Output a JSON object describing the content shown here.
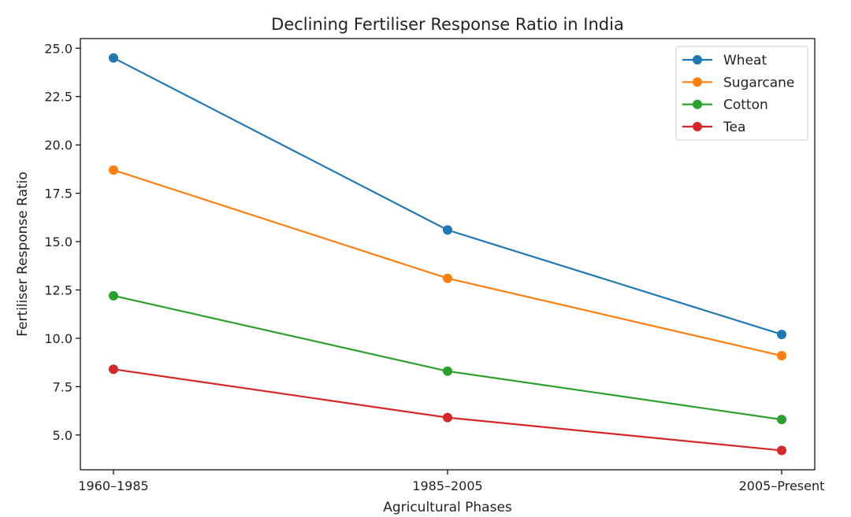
{
  "chart_data": {
    "type": "line",
    "title": "Declining Fertiliser Response Ratio in India",
    "xlabel": "Agricultural Phases",
    "ylabel": "Fertiliser Response Ratio",
    "categories": [
      "1960–1985",
      "1985–2005",
      "2005–Present"
    ],
    "ylim": [
      3.2,
      25.5
    ],
    "yticks": [
      "5.0",
      "7.5",
      "10.0",
      "12.5",
      "15.0",
      "17.5",
      "20.0",
      "22.5",
      "25.0"
    ],
    "grid": false,
    "legend_position": "top-right",
    "series": [
      {
        "name": "Wheat",
        "color": "#1f77b4",
        "values": [
          24.5,
          15.6,
          10.2
        ]
      },
      {
        "name": "Sugarcane",
        "color": "#ff7f0e",
        "values": [
          18.7,
          13.1,
          9.1
        ]
      },
      {
        "name": "Cotton",
        "color": "#2ca02c",
        "values": [
          12.2,
          8.3,
          5.8
        ]
      },
      {
        "name": "Tea",
        "color": "#d62728",
        "values": [
          8.4,
          5.9,
          4.2
        ]
      }
    ]
  }
}
